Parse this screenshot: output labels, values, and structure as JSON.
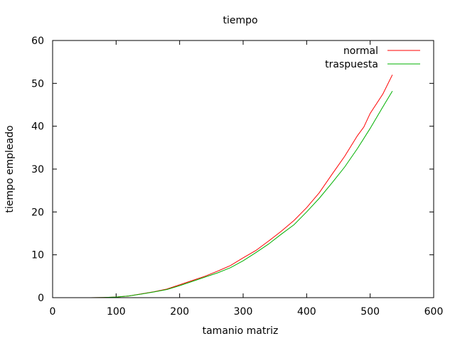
{
  "chart_data": {
    "type": "line",
    "title": "tiempo",
    "xlabel": "tamanio matriz",
    "ylabel": "tiempo empleado",
    "xlim": [
      0,
      600
    ],
    "ylim": [
      0,
      60
    ],
    "xticks": [
      0,
      100,
      200,
      300,
      400,
      500,
      600
    ],
    "yticks": [
      0,
      10,
      20,
      30,
      40,
      50,
      60
    ],
    "xtick_labels": [
      "0",
      "100",
      "200",
      "300",
      "400",
      "500",
      "600"
    ],
    "ytick_labels": [
      "0",
      "10",
      "20",
      "30",
      "40",
      "50",
      "60"
    ],
    "grid": false,
    "legend_position": "top-right",
    "series": [
      {
        "name": "normal",
        "color": "#ff0000",
        "x": [
          60,
          80,
          100,
          120,
          140,
          160,
          180,
          200,
          220,
          240,
          260,
          280,
          300,
          320,
          340,
          360,
          380,
          400,
          420,
          440,
          460,
          480,
          490,
          500,
          520,
          535
        ],
        "y": [
          0.0,
          0.05,
          0.15,
          0.4,
          0.9,
          1.4,
          2.0,
          3.0,
          4.0,
          5.0,
          6.2,
          7.5,
          9.3,
          11.0,
          13.2,
          15.5,
          18.0,
          21.0,
          24.5,
          28.8,
          33.0,
          37.8,
          39.8,
          43.0,
          47.5,
          52.0
        ]
      },
      {
        "name": "traspuesta",
        "color": "#00b000",
        "x": [
          60,
          80,
          100,
          120,
          140,
          160,
          180,
          200,
          220,
          240,
          260,
          280,
          300,
          320,
          340,
          360,
          380,
          400,
          420,
          440,
          460,
          480,
          500,
          520,
          535
        ],
        "y": [
          0.0,
          0.05,
          0.15,
          0.4,
          0.85,
          1.35,
          1.9,
          2.8,
          3.8,
          4.8,
          5.8,
          7.0,
          8.6,
          10.5,
          12.5,
          14.8,
          17.0,
          20.0,
          23.2,
          26.8,
          30.5,
          34.8,
          39.5,
          44.5,
          48.2
        ]
      }
    ]
  }
}
